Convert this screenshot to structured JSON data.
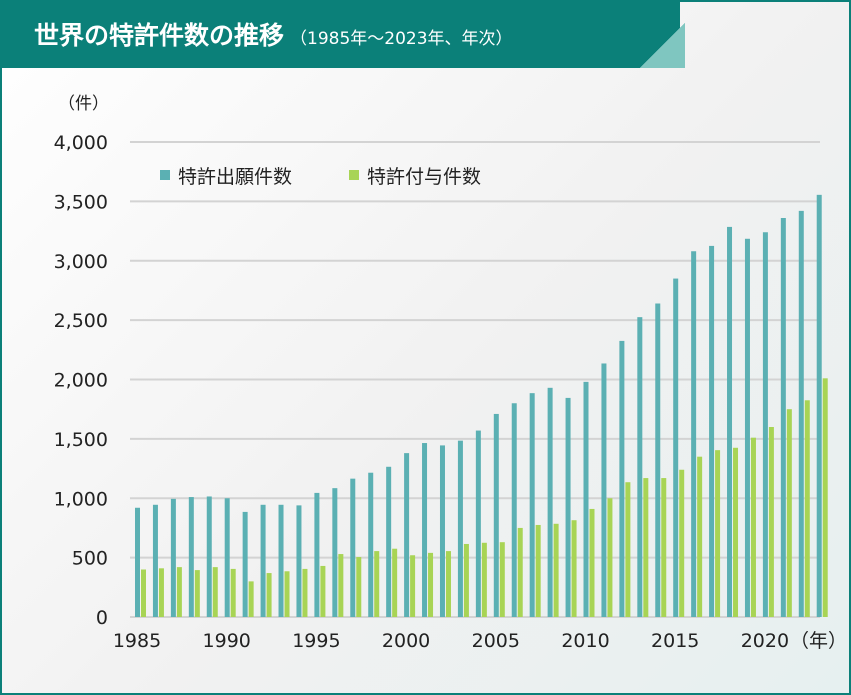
{
  "header": {
    "title": "世界の特許件数の推移",
    "subtitle": "（1985年〜2023年、年次）"
  },
  "chart_data": {
    "type": "bar",
    "title": "世界の特許件数の推移",
    "subtitle": "（1985年〜2023年、年次）",
    "ylabel": "（件）",
    "xlabel": "（年）",
    "ylim": [
      0,
      4000
    ],
    "yticks": [
      0,
      500,
      1000,
      1500,
      2000,
      2500,
      3000,
      3500,
      4000
    ],
    "ytick_labels": [
      "0",
      "500",
      "1,000",
      "1,500",
      "2,000",
      "2,500",
      "3,000",
      "3,500",
      "4,000"
    ],
    "xtick_labels": [
      "1985",
      "1990",
      "1995",
      "2000",
      "2005",
      "2010",
      "2015",
      "2020"
    ],
    "grid": true,
    "legend_position": "top-left",
    "categories": [
      1985,
      1986,
      1987,
      1988,
      1989,
      1990,
      1991,
      1992,
      1993,
      1994,
      1995,
      1996,
      1997,
      1998,
      1999,
      2000,
      2001,
      2002,
      2003,
      2004,
      2005,
      2006,
      2007,
      2008,
      2009,
      2010,
      2011,
      2012,
      2013,
      2014,
      2015,
      2016,
      2017,
      2018,
      2019,
      2020,
      2021,
      2022,
      2023
    ],
    "series": [
      {
        "name": "特許出願件数",
        "color": "#5bb0b3",
        "values": [
          920,
          945,
          995,
          1010,
          1015,
          1000,
          885,
          945,
          945,
          940,
          1045,
          1085,
          1165,
          1215,
          1265,
          1380,
          1465,
          1445,
          1485,
          1570,
          1710,
          1800,
          1885,
          1930,
          1845,
          1980,
          2135,
          2325,
          2525,
          2640,
          2850,
          3080,
          3125,
          3285,
          3185,
          3240,
          3360,
          3420,
          3555
        ]
      },
      {
        "name": "特許付与件数",
        "color": "#a8d455",
        "values": [
          400,
          410,
          420,
          395,
          420,
          405,
          300,
          370,
          385,
          405,
          430,
          530,
          505,
          555,
          575,
          520,
          540,
          555,
          615,
          625,
          630,
          750,
          775,
          785,
          815,
          910,
          1000,
          1135,
          1170,
          1170,
          1240,
          1350,
          1405,
          1425,
          1510,
          1600,
          1750,
          1825,
          2010
        ]
      }
    ]
  }
}
